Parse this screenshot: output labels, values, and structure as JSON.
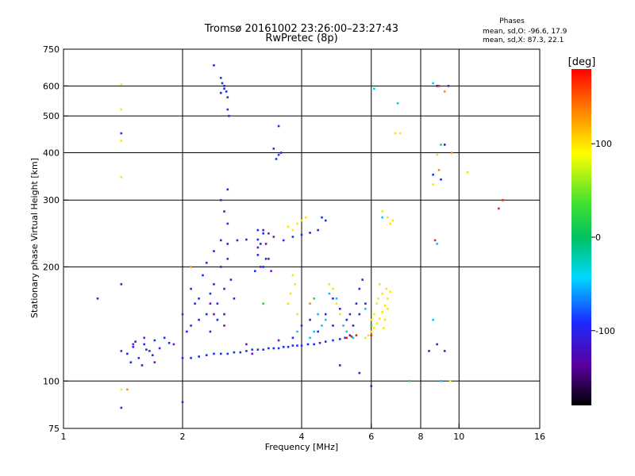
{
  "chart_data": {
    "type": "scatter",
    "title": "Tromsø 20161002 23:26:00–23:27:43",
    "subtitle": "RwPretec (8p)",
    "xlabel": "Frequency [MHz]",
    "ylabel": "Stationary phase Virtual Height [km]",
    "x_scale": "log",
    "y_scale": "log",
    "xlim": [
      1,
      16
    ],
    "ylim": [
      75,
      750
    ],
    "x_ticks": [
      1,
      2,
      4,
      6,
      8,
      10,
      16
    ],
    "x_tick_labels": [
      "1",
      "2",
      "4",
      "6",
      "8",
      "10",
      "16"
    ],
    "x_grid": [
      2,
      4,
      6,
      8,
      10
    ],
    "y_ticks": [
      75,
      100,
      200,
      300,
      400,
      500,
      600,
      750
    ],
    "y_tick_labels": [
      "75",
      "100",
      "200",
      "300",
      "400",
      "500",
      "600",
      "750"
    ],
    "y_grid": [
      100,
      200,
      300,
      400,
      500,
      600
    ],
    "grid": true,
    "stats": {
      "heading": "Phases",
      "line_o": "mean, sd,O: -96.6, 17.9",
      "line_x": "mean, sd,X:  87.3, 22.1"
    },
    "colorbar": {
      "label": "[deg]",
      "range": [
        -180,
        180
      ],
      "ticks": [
        100,
        0,
        -100
      ],
      "tick_labels": [
        "100",
        "0",
        "-100"
      ]
    },
    "series": [
      {
        "comment_free": true,
        "points": [
          [
            1.4,
            120
          ],
          [
            1.45,
            118
          ],
          [
            1.5,
            123
          ],
          [
            1.55,
            115
          ],
          [
            1.6,
            125
          ],
          [
            1.65,
            120
          ],
          [
            1.7,
            128
          ],
          [
            1.75,
            122
          ],
          [
            1.8,
            130
          ],
          [
            1.48,
            112
          ],
          [
            1.58,
            110
          ],
          [
            1.68,
            117
          ],
          [
            1.85,
            126
          ],
          [
            1.52,
            127
          ],
          [
            1.62,
            121
          ],
          [
            2.0,
            115
          ],
          [
            2.2,
            116
          ],
          [
            2.4,
            118
          ],
          [
            2.6,
            118
          ],
          [
            2.8,
            119
          ],
          [
            3.0,
            121
          ],
          [
            3.2,
            121
          ],
          [
            3.4,
            122
          ],
          [
            3.6,
            123
          ],
          [
            3.8,
            124
          ],
          [
            4.0,
            124
          ],
          [
            4.3,
            125
          ],
          [
            4.6,
            127
          ],
          [
            5.0,
            129
          ],
          [
            5.3,
            132
          ],
          [
            2.1,
            115
          ],
          [
            2.3,
            117
          ],
          [
            2.5,
            118
          ],
          [
            2.7,
            119
          ],
          [
            2.9,
            120
          ],
          [
            3.1,
            121
          ],
          [
            3.3,
            122
          ],
          [
            3.5,
            122
          ],
          [
            3.7,
            123
          ],
          [
            3.9,
            124
          ],
          [
            4.15,
            125
          ],
          [
            4.45,
            126
          ],
          [
            4.8,
            128
          ],
          [
            5.15,
            130
          ],
          [
            2.2,
            165
          ],
          [
            2.3,
            150
          ],
          [
            2.4,
            180
          ],
          [
            2.1,
            140
          ],
          [
            2.5,
            200
          ],
          [
            2.6,
            210
          ],
          [
            2.35,
            170
          ],
          [
            2.45,
            145
          ],
          [
            2.25,
            190
          ],
          [
            2.15,
            160
          ],
          [
            2.55,
            175
          ],
          [
            2.05,
            135
          ],
          [
            2.4,
            220
          ],
          [
            2.5,
            235
          ],
          [
            2.6,
            230
          ],
          [
            2.65,
            185
          ],
          [
            2.3,
            205
          ],
          [
            2.2,
            145
          ],
          [
            2.0,
            150
          ],
          [
            2.1,
            175
          ],
          [
            2.45,
            160
          ],
          [
            2.35,
            135
          ],
          [
            2.55,
            150
          ],
          [
            2.7,
            165
          ],
          [
            2.4,
            680
          ],
          [
            2.5,
            630
          ],
          [
            2.52,
            610
          ],
          [
            2.55,
            590
          ],
          [
            2.58,
            580
          ],
          [
            2.6,
            520
          ],
          [
            2.62,
            500
          ],
          [
            2.5,
            575
          ],
          [
            2.55,
            600
          ],
          [
            2.6,
            560
          ],
          [
            3.4,
            410
          ],
          [
            3.5,
            395
          ],
          [
            3.55,
            400
          ],
          [
            3.45,
            385
          ],
          [
            3.5,
            470
          ],
          [
            2.6,
            320
          ],
          [
            2.55,
            280
          ],
          [
            2.6,
            260
          ],
          [
            2.75,
            235
          ],
          [
            2.9,
            236
          ],
          [
            3.1,
            236
          ],
          [
            2.5,
            300
          ],
          [
            3.1,
            250
          ],
          [
            3.15,
            230
          ],
          [
            3.2,
            245
          ],
          [
            3.2,
            200
          ],
          [
            3.25,
            210
          ],
          [
            3.05,
            195
          ],
          [
            3.1,
            215
          ],
          [
            3.6,
            235
          ],
          [
            3.8,
            240
          ],
          [
            4.0,
            243
          ],
          [
            4.2,
            246
          ],
          [
            4.4,
            250
          ],
          [
            4.6,
            265
          ],
          [
            4.5,
            270
          ],
          [
            4.8,
            165
          ],
          [
            5.0,
            155
          ],
          [
            5.2,
            145
          ],
          [
            5.4,
            140
          ],
          [
            5.6,
            150
          ],
          [
            5.6,
            175
          ],
          [
            5.7,
            185
          ],
          [
            5.8,
            160
          ],
          [
            5.5,
            160
          ],
          [
            5.3,
            150
          ],
          [
            4.0,
            140
          ],
          [
            4.2,
            145
          ],
          [
            4.4,
            135
          ],
          [
            3.8,
            130
          ],
          [
            4.6,
            150
          ],
          [
            4.8,
            140
          ],
          [
            1.4,
            85
          ],
          [
            2.0,
            88
          ],
          [
            5.0,
            110
          ],
          [
            5.6,
            105
          ],
          [
            6.0,
            97
          ],
          [
            8.4,
            120
          ],
          [
            8.8,
            125
          ],
          [
            9.2,
            120
          ],
          [
            9.0,
            340
          ],
          [
            8.6,
            350
          ],
          [
            8.8,
            600
          ],
          [
            9.2,
            420
          ],
          [
            9.4,
            600
          ],
          [
            1.4,
            180
          ],
          [
            1.22,
            165
          ],
          [
            1.4,
            450
          ]
        ]
      },
      {
        "comment_free": true,
        "points": [
          [
            5.8,
            130
          ],
          [
            5.9,
            132
          ],
          [
            6.0,
            135
          ],
          [
            6.1,
            138
          ],
          [
            6.2,
            142
          ],
          [
            6.3,
            146
          ],
          [
            6.4,
            152
          ],
          [
            6.5,
            158
          ],
          [
            6.6,
            165
          ],
          [
            6.7,
            172
          ],
          [
            6.2,
            160
          ],
          [
            6.4,
            170
          ],
          [
            6.1,
            150
          ],
          [
            6.5,
            145
          ],
          [
            6.3,
            180
          ],
          [
            6.6,
            155
          ],
          [
            6.0,
            145
          ],
          [
            6.45,
            138
          ],
          [
            6.55,
            175
          ],
          [
            6.25,
            165
          ],
          [
            3.8,
            250
          ],
          [
            3.9,
            260
          ],
          [
            4.0,
            265
          ],
          [
            4.1,
            270
          ],
          [
            3.7,
            255
          ],
          [
            3.8,
            190
          ],
          [
            3.85,
            180
          ],
          [
            3.7,
            160
          ],
          [
            3.75,
            170
          ],
          [
            3.9,
            150
          ],
          [
            4.7,
            180
          ],
          [
            4.8,
            175
          ],
          [
            4.9,
            160
          ],
          [
            5.0,
            150
          ],
          [
            6.7,
            260
          ],
          [
            6.8,
            265
          ],
          [
            6.6,
            270
          ],
          [
            6.4,
            280
          ],
          [
            6.9,
            450
          ],
          [
            7.1,
            450
          ],
          [
            8.8,
            395
          ],
          [
            8.6,
            330
          ],
          [
            10.5,
            355
          ],
          [
            1.4,
            430
          ],
          [
            1.4,
            605
          ],
          [
            1.4,
            520
          ],
          [
            1.4,
            345
          ],
          [
            1.4,
            95
          ],
          [
            9.5,
            100
          ]
        ]
      },
      {
        "comment_free": true,
        "points": [
          [
            4.2,
            130
          ],
          [
            4.3,
            135
          ],
          [
            4.5,
            140
          ],
          [
            4.6,
            145
          ],
          [
            3.9,
            135
          ],
          [
            4.7,
            170
          ],
          [
            4.9,
            165
          ],
          [
            5.1,
            140
          ],
          [
            5.2,
            135
          ],
          [
            5.4,
            130
          ],
          [
            4.4,
            150
          ],
          [
            5.8,
            155
          ],
          [
            6.1,
            590
          ],
          [
            3.2,
            250
          ],
          [
            8.6,
            145
          ],
          [
            8.8,
            230
          ],
          [
            8.6,
            610
          ],
          [
            9.0,
            100
          ],
          [
            6.4,
            270
          ],
          [
            7.0,
            540
          ]
        ]
      },
      {
        "comment_free": true,
        "points": [
          [
            8.9,
            600
          ],
          [
            8.7,
            235
          ],
          [
            12.6,
            285
          ],
          [
            12.9,
            300
          ],
          [
            5.2,
            130
          ],
          [
            5.35,
            131
          ],
          [
            5.5,
            132
          ],
          [
            6.0,
            132
          ]
        ]
      },
      {
        "comment_free": true,
        "points": [
          [
            3.2,
            160
          ],
          [
            4.3,
            165
          ],
          [
            7.5,
            100
          ],
          [
            9.0,
            420
          ],
          [
            6.0,
            140
          ]
        ]
      },
      {
        "comment_free": true,
        "points": [
          [
            1.45,
            95
          ],
          [
            9.2,
            580
          ],
          [
            8.9,
            360
          ],
          [
            9.6,
            400
          ],
          [
            4.2,
            160
          ],
          [
            2.1,
            200
          ]
        ]
      },
      {
        "comment_free": true,
        "points": [
          [
            3.2,
            250
          ],
          [
            3.3,
            245
          ],
          [
            3.25,
            230
          ],
          [
            3.3,
            210
          ],
          [
            3.15,
            200
          ],
          [
            3.35,
            195
          ],
          [
            3.1,
            225
          ],
          [
            3.4,
            240
          ],
          [
            1.5,
            125
          ],
          [
            1.7,
            112
          ],
          [
            1.6,
            130
          ],
          [
            1.9,
            125
          ],
          [
            2.9,
            125
          ],
          [
            3.5,
            128
          ],
          [
            3.0,
            118
          ],
          [
            2.4,
            150
          ],
          [
            2.55,
            140
          ],
          [
            2.35,
            160
          ]
        ]
      }
    ]
  }
}
